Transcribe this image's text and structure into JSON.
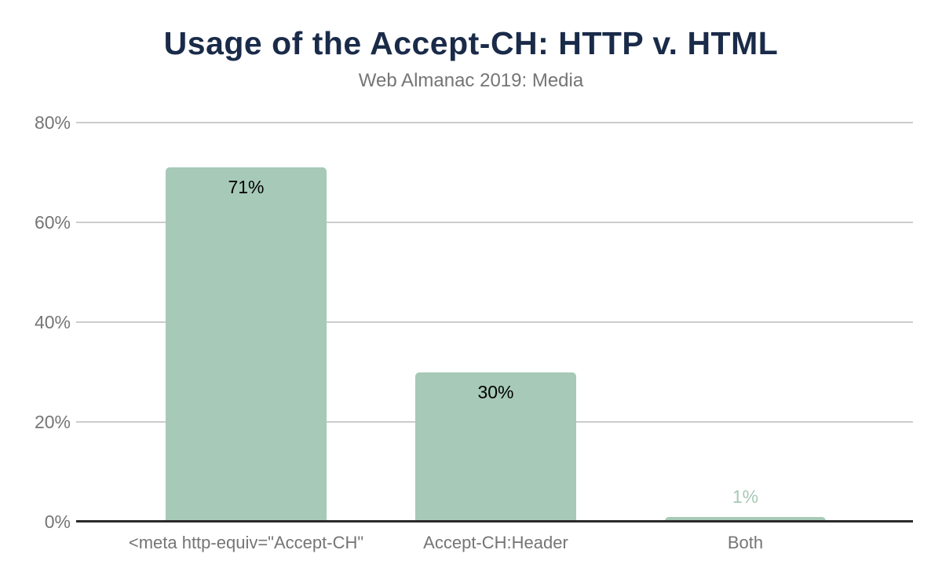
{
  "header": {
    "title": "Usage of the Accept-CH: HTTP v. HTML",
    "subtitle": "Web Almanac 2019: Media"
  },
  "chart_data": {
    "type": "bar",
    "title": "Usage of the Accept-CH: HTTP v. HTML",
    "subtitle": "Web Almanac 2019: Media",
    "categories": [
      "<meta http-equiv=\"Accept-CH\"",
      "Accept-CH:Header",
      "Both"
    ],
    "values": [
      71,
      30,
      1
    ],
    "value_labels": [
      "71%",
      "30%",
      "1%"
    ],
    "xlabel": "",
    "ylabel": "",
    "ylim": [
      0,
      80
    ],
    "yticks": [
      0,
      20,
      40,
      60,
      80
    ],
    "ytick_labels": [
      "0%",
      "20%",
      "40%",
      "60%",
      "80%"
    ],
    "grid": true,
    "legend": "none",
    "value_label_placement": "inside bar for large values, above bar for small values",
    "colors": {
      "bar": "#a7c9b8",
      "title": "#1a2b49",
      "subtitle": "#757575",
      "axis_label": "#757575",
      "gridline": "#cccccc",
      "baseline": "#2a2a2a",
      "value_label_inside": "#000000",
      "value_label_outside": "#a7c9b8",
      "background": "#ffffff"
    }
  }
}
